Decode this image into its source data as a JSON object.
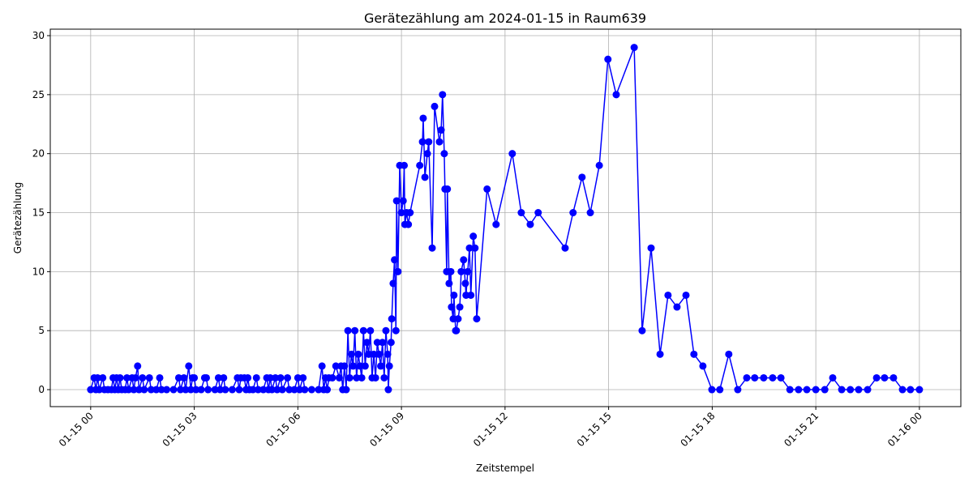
{
  "chart_data": {
    "type": "line",
    "title": "Gerätezählung am 2024-01-15 in Raum639",
    "xlabel": "Zeitstempel",
    "ylabel": "Gerätezählung",
    "color": "#0000ff",
    "grid": true,
    "marker": "circle",
    "x": [
      0.0,
      0.1,
      0.15,
      0.2,
      0.25,
      0.35,
      0.4,
      0.5,
      0.6,
      0.65,
      0.7,
      0.75,
      0.8,
      0.85,
      0.9,
      1.0,
      1.05,
      1.1,
      1.2,
      1.25,
      1.3,
      1.36,
      1.4,
      1.5,
      1.55,
      1.7,
      1.75,
      1.9,
      2.0,
      2.05,
      2.2,
      2.4,
      2.55,
      2.6,
      2.7,
      2.75,
      2.84,
      2.9,
      2.95,
      3.0,
      3.05,
      3.2,
      3.3,
      3.35,
      3.4,
      3.6,
      3.7,
      3.75,
      3.85,
      3.9,
      4.1,
      4.25,
      4.3,
      4.35,
      4.45,
      4.5,
      4.55,
      4.6,
      4.7,
      4.8,
      4.85,
      5.0,
      5.1,
      5.15,
      5.2,
      5.25,
      5.35,
      5.4,
      5.5,
      5.55,
      5.7,
      5.75,
      5.9,
      6.0,
      6.05,
      6.15,
      6.2,
      6.4,
      6.6,
      6.7,
      6.75,
      6.8,
      6.85,
      6.9,
      7.0,
      7.1,
      7.2,
      7.25,
      7.3,
      7.35,
      7.4,
      7.45,
      7.5,
      7.55,
      7.6,
      7.65,
      7.7,
      7.75,
      7.8,
      7.85,
      7.9,
      7.95,
      8.0,
      8.05,
      8.1,
      8.15,
      8.2,
      8.25,
      8.3,
      8.35,
      8.4,
      8.45,
      8.5,
      8.55,
      8.6,
      8.62,
      8.65,
      8.7,
      8.72,
      8.76,
      8.8,
      8.84,
      8.86,
      8.9,
      8.95,
      9.0,
      9.05,
      9.08,
      9.1,
      9.15,
      9.2,
      9.25,
      9.53,
      9.61,
      9.63,
      9.68,
      9.75,
      9.79,
      9.89,
      9.96,
      10.1,
      10.15,
      10.19,
      10.24,
      10.26,
      10.31,
      10.33,
      10.38,
      10.43,
      10.45,
      10.5,
      10.52,
      10.57,
      10.59,
      10.64,
      10.69,
      10.73,
      10.8,
      10.85,
      10.87,
      10.92,
      10.97,
      11.01,
      11.08,
      11.13,
      11.18,
      11.48,
      11.74,
      12.21,
      12.47,
      12.73,
      12.96,
      13.74,
      13.97,
      14.23,
      14.47,
      14.73,
      14.98,
      15.22,
      15.74,
      15.97,
      16.23,
      16.49,
      16.72,
      16.98,
      17.24,
      17.47,
      17.73,
      17.99,
      18.22,
      18.48,
      18.74,
      19.0,
      19.23,
      19.49,
      19.75,
      19.99,
      20.25,
      20.5,
      20.74,
      21.0,
      21.26,
      21.49,
      21.75,
      22.0,
      22.24,
      22.5,
      22.76,
      22.99,
      23.25,
      23.51,
      23.74,
      24.0
    ],
    "values": [
      0,
      1,
      0,
      1,
      0,
      1,
      0,
      0,
      0,
      1,
      0,
      1,
      0,
      1,
      0,
      0,
      1,
      0,
      1,
      0,
      1,
      2,
      0,
      1,
      0,
      1,
      0,
      0,
      1,
      0,
      0,
      0,
      1,
      0,
      1,
      0,
      2,
      0,
      1,
      1,
      0,
      0,
      1,
      1,
      0,
      0,
      1,
      0,
      1,
      0,
      0,
      1,
      0,
      1,
      1,
      0,
      1,
      0,
      0,
      1,
      0,
      0,
      1,
      0,
      1,
      0,
      1,
      0,
      1,
      0,
      1,
      0,
      0,
      1,
      0,
      1,
      0,
      0,
      0,
      2,
      0,
      1,
      0,
      1,
      1,
      2,
      1,
      2,
      0,
      2,
      0,
      5,
      1,
      3,
      2,
      5,
      1,
      3,
      2,
      1,
      5,
      2,
      4,
      3,
      5,
      1,
      3,
      1,
      4,
      3,
      2,
      4,
      1,
      5,
      3,
      0,
      2,
      4,
      6,
      9,
      11,
      5,
      16,
      10,
      19,
      15,
      16,
      19,
      14,
      15,
      14,
      15,
      19,
      21,
      23,
      18,
      20,
      21,
      12,
      24,
      21,
      22,
      25,
      20,
      17,
      10,
      17,
      9,
      10,
      7,
      6,
      8,
      5,
      5,
      6,
      7,
      10,
      11,
      9,
      8,
      10,
      12,
      8,
      13,
      12,
      6,
      17,
      14,
      20,
      15,
      14,
      15,
      12,
      15,
      18,
      15,
      19,
      28,
      25,
      29,
      5,
      12,
      3,
      8,
      7,
      8,
      3,
      2,
      0,
      0,
      3,
      0,
      1,
      1,
      1,
      1,
      1,
      0,
      0,
      0,
      0,
      0,
      1,
      0,
      0,
      0,
      0,
      1,
      1,
      1,
      0,
      0,
      0
    ],
    "xlim": [
      -1.17,
      25.2
    ],
    "xticks": [
      {
        "value": 0,
        "label": "01-15 00"
      },
      {
        "value": 3,
        "label": "01-15 03"
      },
      {
        "value": 6,
        "label": "01-15 06"
      },
      {
        "value": 9,
        "label": "01-15 09"
      },
      {
        "value": 12,
        "label": "01-15 12"
      },
      {
        "value": 15,
        "label": "01-15 15"
      },
      {
        "value": 18,
        "label": "01-15 18"
      },
      {
        "value": 21,
        "label": "01-15 21"
      },
      {
        "value": 24,
        "label": "01-16 00"
      }
    ],
    "ylim": [
      -1.44,
      30.55
    ],
    "yticks": [
      0,
      5,
      10,
      15,
      20,
      25,
      30
    ]
  }
}
